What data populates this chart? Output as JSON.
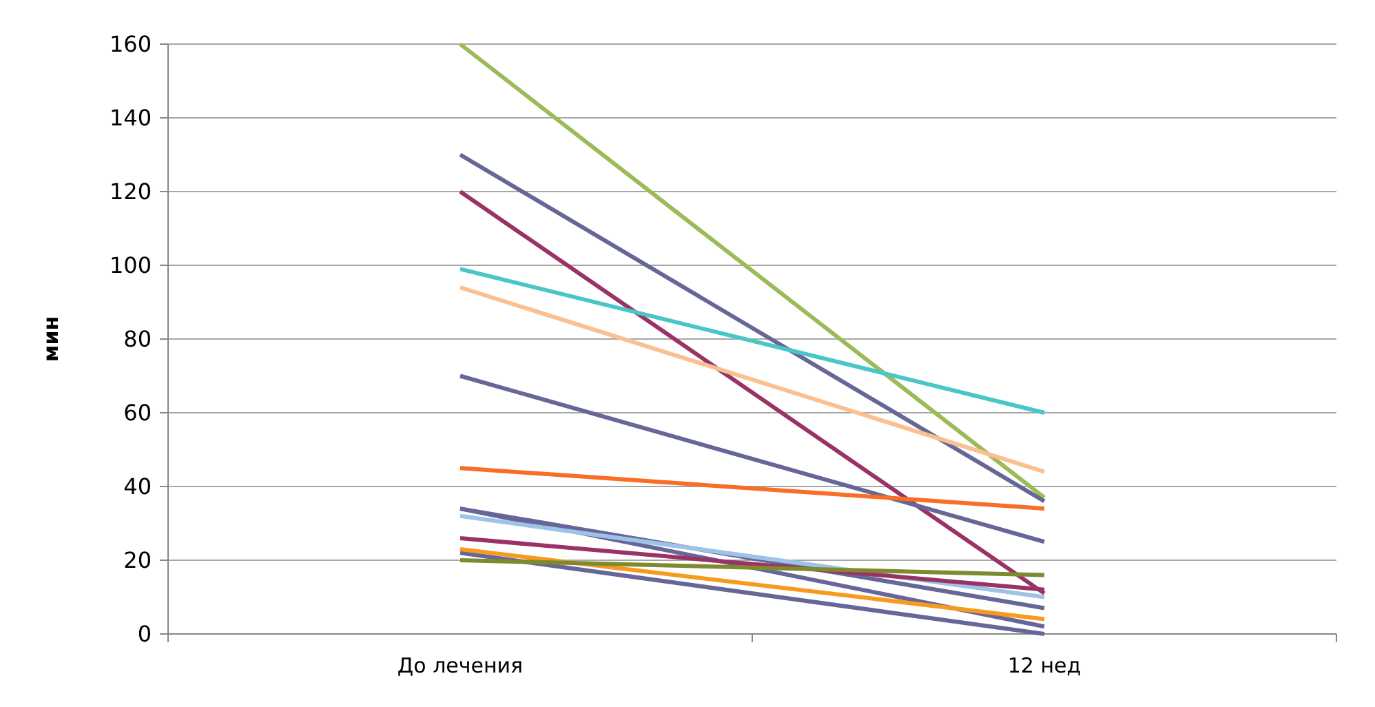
{
  "chart_data": {
    "type": "line",
    "ylabel": "мин",
    "categories": [
      "До лечения",
      "12 нед"
    ],
    "ylim": [
      0,
      160
    ],
    "yticks": [
      0,
      20,
      40,
      60,
      80,
      100,
      120,
      140,
      160
    ],
    "grid": "y",
    "marker": "none",
    "line_style": "solid",
    "series": [
      {
        "color": "#9bbb59",
        "values": [
          160,
          37
        ]
      },
      {
        "color": "#666699",
        "values": [
          130,
          36
        ]
      },
      {
        "color": "#993366",
        "values": [
          120,
          11
        ]
      },
      {
        "color": "#4bc6c6",
        "values": [
          99,
          60
        ]
      },
      {
        "color": "#fac090",
        "values": [
          94,
          44
        ]
      },
      {
        "color": "#666699",
        "values": [
          70,
          25
        ]
      },
      {
        "color": "#f96d25",
        "values": [
          45,
          34
        ]
      },
      {
        "color": "#666699",
        "values": [
          34,
          7
        ]
      },
      {
        "color": "#666699",
        "values": [
          34,
          2
        ]
      },
      {
        "color": "#9dc3e6",
        "values": [
          32,
          10
        ]
      },
      {
        "color": "#993366",
        "values": [
          26,
          12
        ]
      },
      {
        "color": "#666699",
        "values": [
          22,
          0
        ]
      },
      {
        "color": "#f79b1e",
        "values": [
          23,
          4
        ]
      },
      {
        "color": "#7f8a2f",
        "values": [
          20,
          16
        ]
      }
    ]
  }
}
